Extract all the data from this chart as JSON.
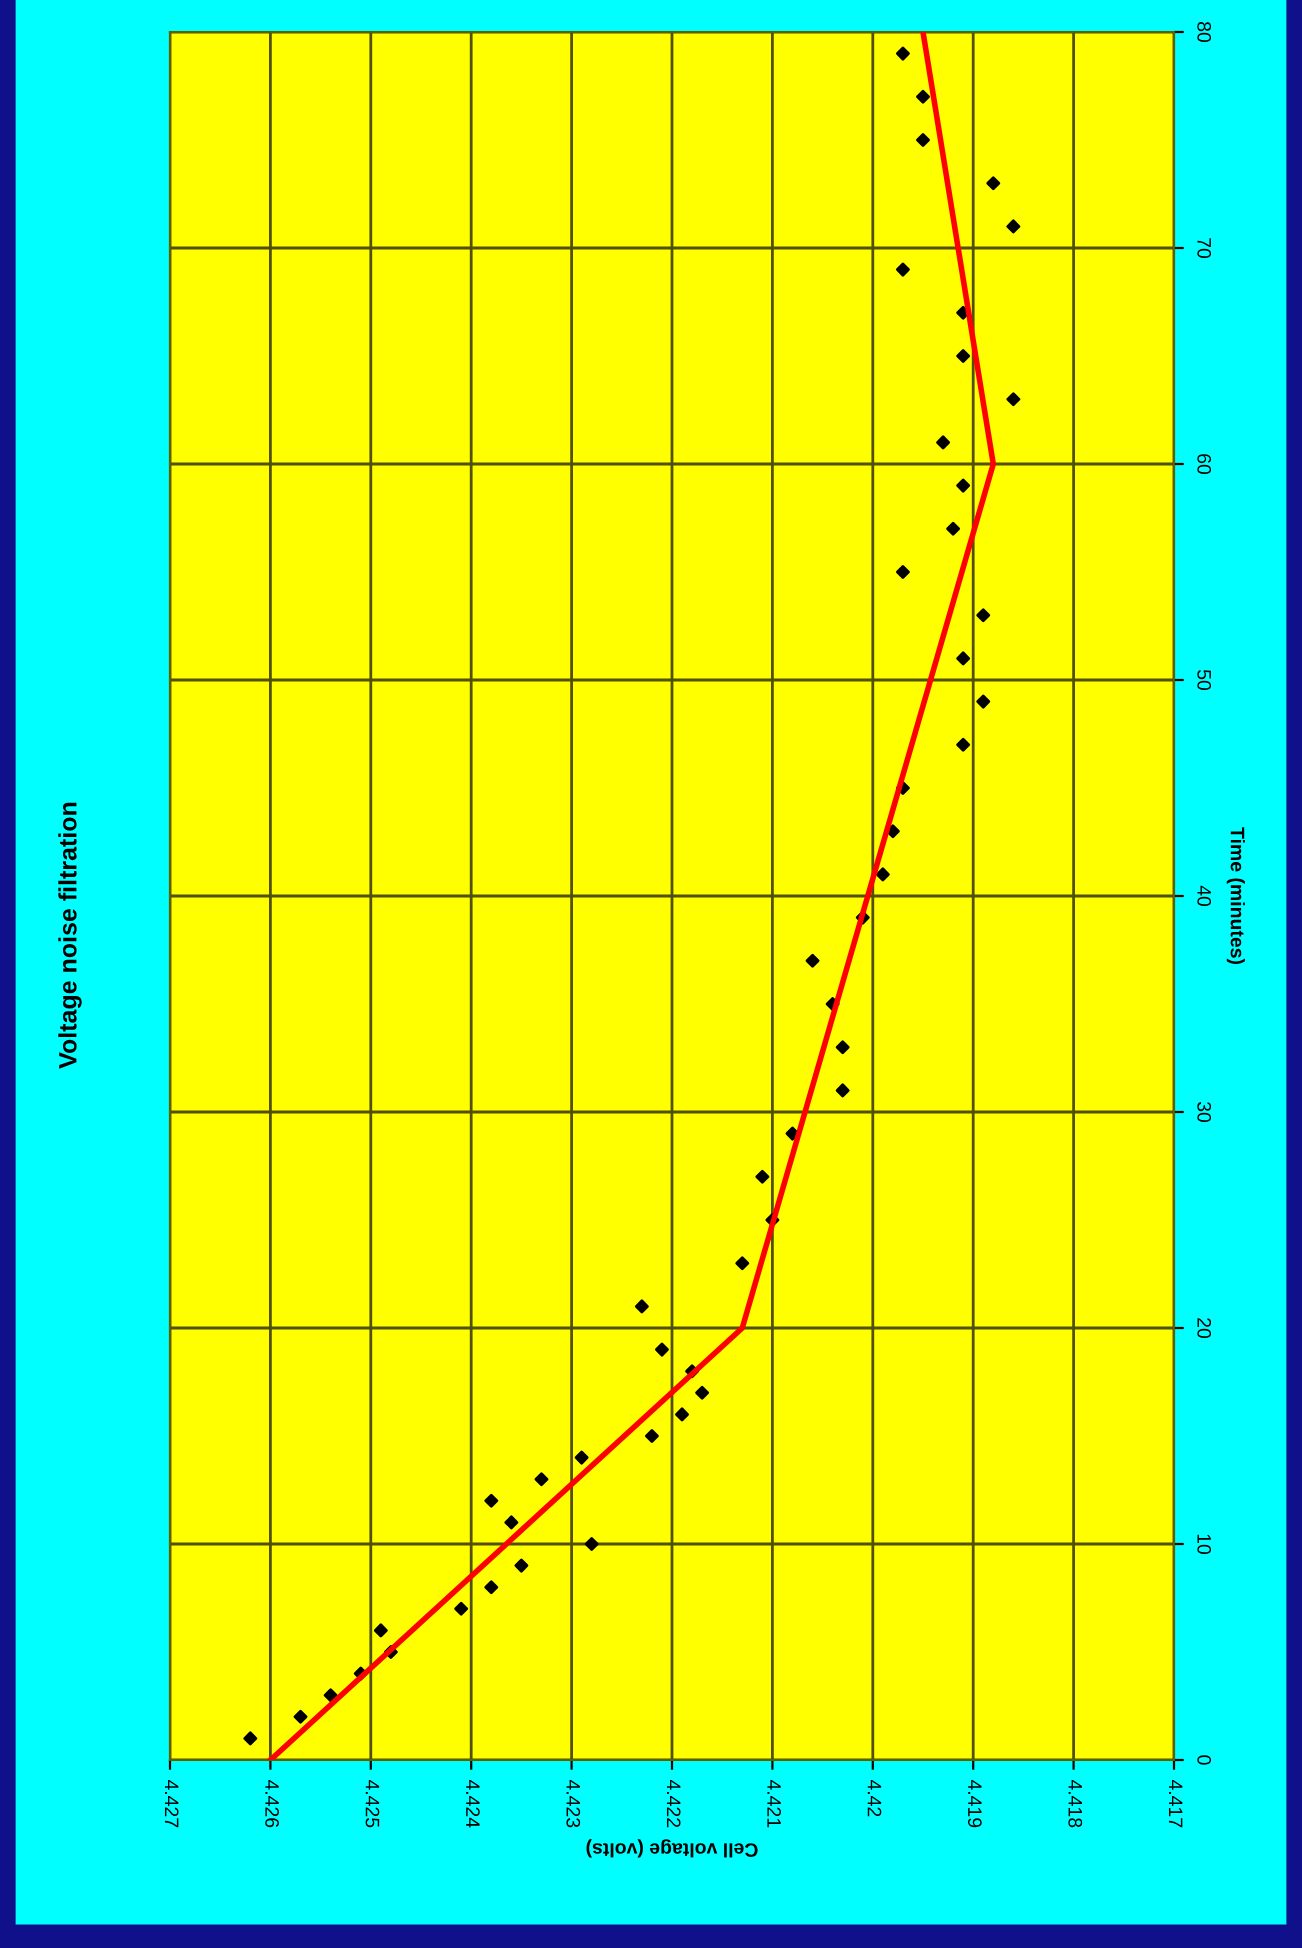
{
  "chart_data": {
    "type": "scatter",
    "title": "Voltage noise filtration",
    "xlabel": "Cell voltage (volts)",
    "ylabel": "Time (minutes)",
    "xlim": [
      4.427,
      4.417
    ],
    "xticks": [
      4.427,
      4.426,
      4.425,
      4.424,
      4.423,
      4.422,
      4.421,
      4.42,
      4.419,
      4.418,
      4.417
    ],
    "ylim": [
      0,
      80
    ],
    "yticks": [
      0,
      10,
      20,
      30,
      40,
      50,
      60,
      70,
      80
    ],
    "grid": true,
    "series": [
      {
        "color": "#000000",
        "marker": "diamond",
        "x": [
          4.4262,
          4.4257,
          4.4254,
          4.4251,
          4.4248,
          4.4249,
          4.4241,
          4.4238,
          4.4235,
          4.4228,
          4.4236,
          4.4238,
          4.4233,
          4.4229,
          4.4222,
          4.4219,
          4.4217,
          4.4218,
          4.4221,
          4.4223,
          4.4213,
          4.421,
          4.4211,
          4.4208,
          4.4203,
          4.4203,
          4.4204,
          4.4206,
          4.4201,
          4.4199,
          4.4198,
          4.4197,
          4.4191,
          4.4189,
          4.4191,
          4.4189,
          4.4197,
          4.4192,
          4.4191,
          4.4193,
          4.4186,
          4.4191,
          4.4191,
          4.4197,
          4.4186,
          4.4188,
          4.4195,
          4.4195,
          4.4197
        ],
        "values": [
          1,
          2,
          3,
          4,
          5,
          6,
          7,
          8,
          9,
          10,
          11,
          12,
          13,
          14,
          15,
          16,
          17,
          18,
          19,
          21,
          23,
          25,
          27,
          29,
          31,
          33,
          35,
          37,
          39,
          41,
          43,
          45,
          47,
          49,
          51,
          53,
          55,
          57,
          59,
          61,
          63,
          65,
          67,
          69,
          71,
          73,
          75,
          77,
          79
        ]
      },
      {
        "type": "line",
        "color": "#ff0000",
        "marker": "none",
        "x": [
          4.426,
          4.4213,
          4.4188,
          4.4195
        ],
        "values": [
          0,
          20,
          60,
          80
        ]
      }
    ]
  }
}
